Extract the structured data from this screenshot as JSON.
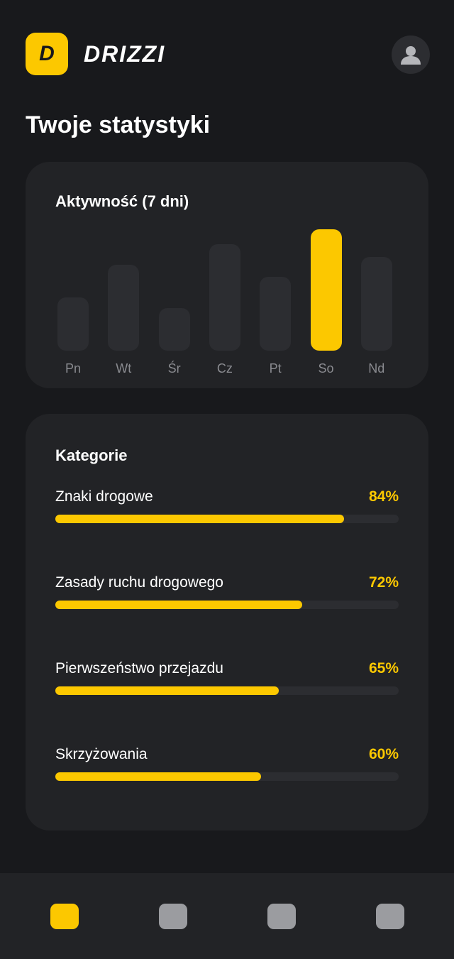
{
  "header": {
    "logo_letter": "D",
    "brand": "DRIZZI",
    "avatar_icon": "user-icon"
  },
  "page_title": "Twoje statystyki",
  "activity": {
    "title": "Aktywność (7 dni)",
    "chart_data": {
      "type": "bar",
      "categories": [
        "Pn",
        "Wt",
        "Śr",
        "Cz",
        "Pt",
        "So",
        "Nd"
      ],
      "values": [
        44,
        71,
        35,
        88,
        61,
        100,
        77
      ],
      "highlighted": "So",
      "bar_color": "#2c2d31",
      "highlight_color": "#fcc800"
    }
  },
  "categories": {
    "title": "Kategorie",
    "items": [
      {
        "name": "Znaki drogowe",
        "percent_label": "84%",
        "value": 84
      },
      {
        "name": "Zasady ruchu drogowego",
        "percent_label": "72%",
        "value": 72
      },
      {
        "name": "Pierwszeństwo przejazdu",
        "percent_label": "65%",
        "value": 65
      },
      {
        "name": "Skrzyżowania",
        "percent_label": "60%",
        "value": 60
      }
    ]
  },
  "nav": {
    "items": [
      {
        "name": "nav-tab-1",
        "active": true
      },
      {
        "name": "nav-tab-2",
        "active": false
      },
      {
        "name": "nav-tab-3",
        "active": false
      },
      {
        "name": "nav-tab-4",
        "active": false
      }
    ]
  },
  "colors": {
    "background": "#18191c",
    "card": "#222326",
    "accent": "#fcc800",
    "muted_text": "#8a8b90"
  }
}
